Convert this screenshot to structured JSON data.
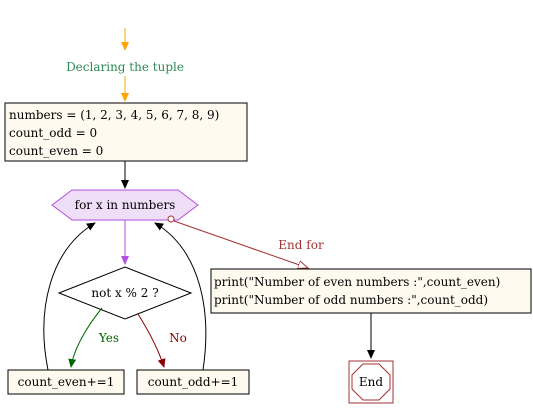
{
  "diagram": {
    "label_declaring": "Declaring the tuple",
    "declare_box": {
      "line1": "numbers = (1, 2, 3, 4, 5, 6, 7, 8, 9)",
      "line2": "count_odd = 0",
      "line3": "count_even = 0"
    },
    "loop_label": "for x in numbers",
    "end_for_label": "End for",
    "condition_label": "not x % 2 ?",
    "yes_label": "Yes",
    "no_label": "No",
    "even_box_label": "count_even+=1",
    "odd_box_label": "count_odd+=1",
    "print_box": {
      "line1": "print(\"Number of even numbers :\",count_even)",
      "line2": "print(\"Number of odd numbers :\",count_odd)"
    },
    "end_label": "End"
  },
  "colors": {
    "orange_arrow": "#ffa500",
    "declare_text": "#2e8b57",
    "box_fill": "#fffaf0",
    "loop_fill": "#eedef8",
    "violet_arrow": "#b44fe0",
    "end_for_red": "#a33333",
    "yes_green": "#006400",
    "no_red": "#8b0000"
  }
}
